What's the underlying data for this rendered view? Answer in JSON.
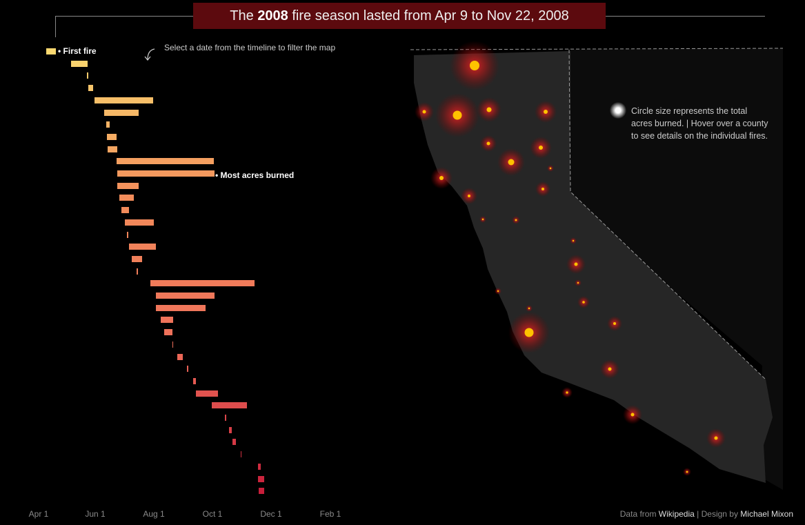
{
  "title": {
    "prefix": "The ",
    "year": "2008",
    "middle": " fire season lasted from Apr 9 to Nov 22, 2008"
  },
  "hint": "Select a date from the timeline to filter the map",
  "annotations": {
    "first_fire": "• First fire",
    "most_acres": "• Most acres burned"
  },
  "legend_text": "Circle size represents the total acres burned. | Hover over a county to see details on the individual fires.",
  "footer": {
    "prefix": "Data from ",
    "source": "Wikipedia",
    "sep": " | Design by ",
    "author": "Michael Mixon"
  },
  "axis_ticks": [
    "Apr 1",
    "Jun 1",
    "Aug 1",
    "Oct 1",
    "Dec 1",
    "Feb 1"
  ],
  "colors": {
    "title_bg": "#5c0a0e",
    "bar_early": "#f6c66a",
    "bar_mid": "#f08a5a",
    "bar_late": "#c81e3a",
    "fire_core": "#ffc200",
    "fire_glow": "#d22020"
  },
  "chart_data": {
    "type": "gantt",
    "x_axis_start": "2008-04-01",
    "fires": [
      {
        "start": "2008-04-09",
        "end": "2008-04-19"
      },
      {
        "start": "2008-05-05",
        "end": "2008-05-22"
      },
      {
        "start": "2008-05-21",
        "end": "2008-05-23"
      },
      {
        "start": "2008-05-23",
        "end": "2008-05-28"
      },
      {
        "start": "2008-05-29",
        "end": "2008-07-29"
      },
      {
        "start": "2008-06-08",
        "end": "2008-07-14"
      },
      {
        "start": "2008-06-10",
        "end": "2008-06-14"
      },
      {
        "start": "2008-06-11",
        "end": "2008-06-21"
      },
      {
        "start": "2008-06-12",
        "end": "2008-06-22"
      },
      {
        "start": "2008-06-21",
        "end": "2008-09-30"
      },
      {
        "start": "2008-06-22",
        "end": "2008-10-01"
      },
      {
        "start": "2008-06-22",
        "end": "2008-07-14"
      },
      {
        "start": "2008-06-24",
        "end": "2008-07-09"
      },
      {
        "start": "2008-06-26",
        "end": "2008-07-04"
      },
      {
        "start": "2008-06-30",
        "end": "2008-07-30"
      },
      {
        "start": "2008-07-02",
        "end": "2008-07-03"
      },
      {
        "start": "2008-07-04",
        "end": "2008-08-01"
      },
      {
        "start": "2008-07-07",
        "end": "2008-07-18"
      },
      {
        "start": "2008-07-12",
        "end": "2008-07-13"
      },
      {
        "start": "2008-07-26",
        "end": "2008-11-12"
      },
      {
        "start": "2008-08-01",
        "end": "2008-10-01"
      },
      {
        "start": "2008-08-01",
        "end": "2008-09-22"
      },
      {
        "start": "2008-08-06",
        "end": "2008-08-19"
      },
      {
        "start": "2008-08-10",
        "end": "2008-08-18"
      },
      {
        "start": "2008-08-18",
        "end": "2008-08-19"
      },
      {
        "start": "2008-08-23",
        "end": "2008-08-29"
      },
      {
        "start": "2008-09-02",
        "end": "2008-09-04"
      },
      {
        "start": "2008-09-09",
        "end": "2008-09-12"
      },
      {
        "start": "2008-09-12",
        "end": "2008-10-05"
      },
      {
        "start": "2008-09-28",
        "end": "2008-11-04"
      },
      {
        "start": "2008-10-12",
        "end": "2008-10-13"
      },
      {
        "start": "2008-10-16",
        "end": "2008-10-19"
      },
      {
        "start": "2008-10-20",
        "end": "2008-10-23"
      },
      {
        "start": "2008-10-28",
        "end": "2008-10-29"
      },
      {
        "start": "2008-11-15",
        "end": "2008-11-18"
      },
      {
        "start": "2008-11-15",
        "end": "2008-11-22"
      },
      {
        "start": "2008-11-16",
        "end": "2008-11-22"
      }
    ]
  }
}
